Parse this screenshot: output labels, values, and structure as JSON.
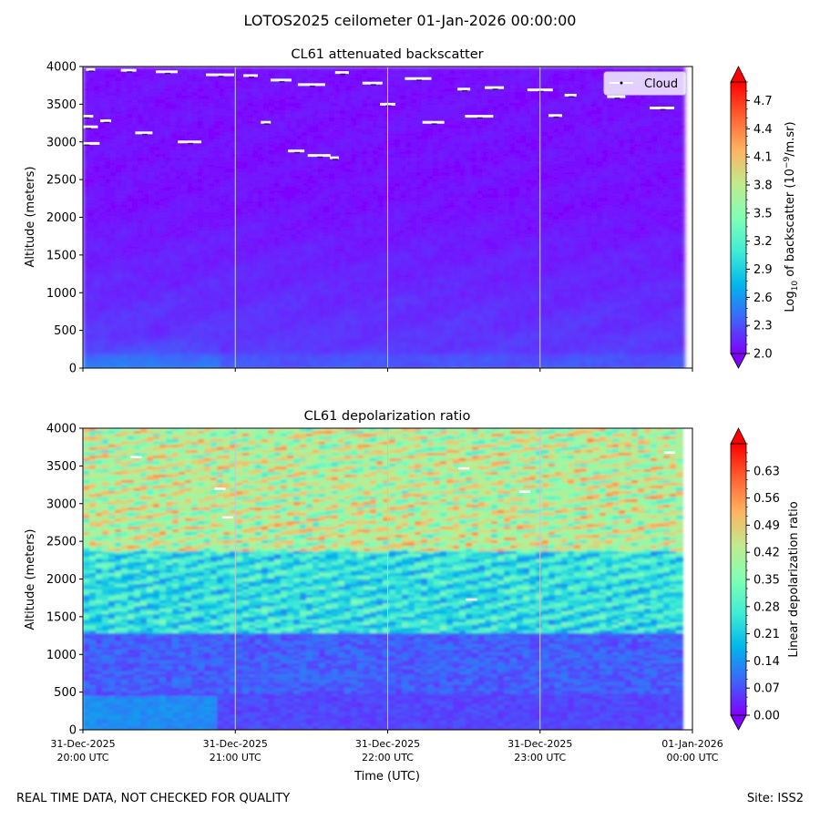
{
  "suptitle": "LOTOS2025 ceilometer 01-Jan-2026 00:00:00",
  "footer": {
    "left": "REAL TIME DATA, NOT CHECKED FOR QUALITY",
    "right": "Site: ISS2"
  },
  "chart_data": [
    {
      "type": "heatmap",
      "title": "CL61 attenuated backscatter",
      "ylabel": "Altitude (meters)",
      "ylim": [
        0,
        4000
      ],
      "yticks": [
        "0",
        "500",
        "1000",
        "1500",
        "2000",
        "2500",
        "3000",
        "3500",
        "4000"
      ],
      "xlim_hours": [
        0,
        4
      ],
      "colorbar": {
        "label_prefix": "Log",
        "label_sub": "10",
        "label_mid": " of backscatter (10",
        "label_sup": "−9",
        "label_suffix": "/m.sr)",
        "range": [
          2.0,
          4.9
        ],
        "ticks": [
          "2.0",
          "2.3",
          "2.6",
          "2.9",
          "3.2",
          "3.5",
          "3.8",
          "4.1",
          "4.4",
          "4.7"
        ]
      },
      "legend": {
        "label": "Cloud",
        "position": "top-right"
      },
      "cloud_hits": [
        [
          0.05,
          3960
        ],
        [
          0.3,
          3950
        ],
        [
          0.55,
          3930
        ],
        [
          0.9,
          3890
        ],
        [
          1.1,
          3880
        ],
        [
          1.3,
          3820
        ],
        [
          1.5,
          3760
        ],
        [
          1.7,
          3920
        ],
        [
          1.9,
          3780
        ],
        [
          2.2,
          3840
        ],
        [
          2.5,
          3700
        ],
        [
          2.7,
          3720
        ],
        [
          3.0,
          3690
        ],
        [
          3.2,
          3620
        ],
        [
          3.5,
          3600
        ],
        [
          3.8,
          3450
        ],
        [
          0.15,
          3280
        ],
        [
          0.4,
          3120
        ],
        [
          0.7,
          3000
        ],
        [
          1.2,
          3260
        ],
        [
          1.4,
          2880
        ],
        [
          1.55,
          2820
        ],
        [
          1.65,
          2790
        ],
        [
          2.0,
          3500
        ],
        [
          2.3,
          3260
        ],
        [
          2.6,
          3340
        ],
        [
          0.02,
          3340
        ],
        [
          0.03,
          3200
        ],
        [
          0.02,
          2980
        ],
        [
          3.1,
          3350
        ]
      ]
    },
    {
      "type": "heatmap",
      "title": "CL61 depolarization ratio",
      "ylabel": "Altitude (meters)",
      "xlabel": "Time (UTC)",
      "ylim": [
        0,
        4000
      ],
      "yticks": [
        "0",
        "500",
        "1000",
        "1500",
        "2000",
        "2500",
        "3000",
        "3500",
        "4000"
      ],
      "xlim_hours": [
        0,
        4
      ],
      "xticks": [
        {
          "date": "31-Dec-2025",
          "time": "20:00 UTC"
        },
        {
          "date": "31-Dec-2025",
          "time": "21:00 UTC"
        },
        {
          "date": "31-Dec-2025",
          "time": "22:00 UTC"
        },
        {
          "date": "31-Dec-2025",
          "time": "23:00 UTC"
        },
        {
          "date": "01-Jan-2026",
          "time": "00:00 UTC"
        }
      ],
      "colorbar": {
        "label": "Linear depolarization ratio",
        "range": [
          0.0,
          0.7
        ],
        "ticks": [
          "0.00",
          "0.07",
          "0.14",
          "0.21",
          "0.28",
          "0.35",
          "0.42",
          "0.49",
          "0.56",
          "0.63"
        ]
      }
    }
  ]
}
